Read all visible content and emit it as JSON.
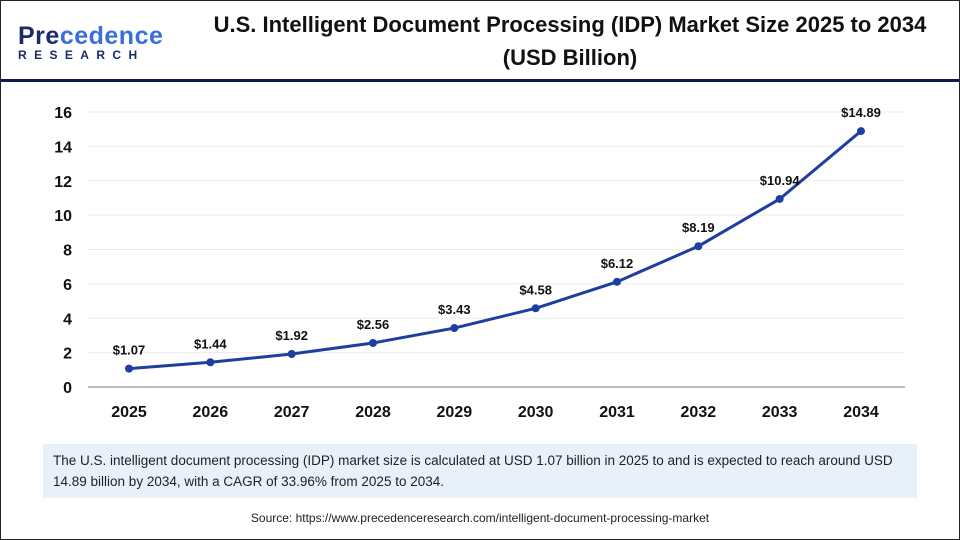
{
  "logo": {
    "line1": "Precedence",
    "line2": "RESEARCH"
  },
  "title": "U.S. Intelligent Document Processing (IDP) Market Size 2025 to 2034 (USD Billion)",
  "chart_data": {
    "type": "line",
    "title": "U.S. Intelligent Document Processing (IDP) Market Size 2025 to 2034 (USD Billion)",
    "categories": [
      "2025",
      "2026",
      "2027",
      "2028",
      "2029",
      "2030",
      "2031",
      "2032",
      "2033",
      "2034"
    ],
    "values": [
      1.07,
      1.44,
      1.92,
      2.56,
      3.43,
      4.58,
      6.12,
      8.19,
      10.94,
      14.89
    ],
    "data_labels": [
      "$1.07",
      "$1.44",
      "$1.92",
      "$2.56",
      "$3.43",
      "$4.58",
      "$6.12",
      "$8.19",
      "$10.94",
      "$14.89"
    ],
    "yticks": [
      "0",
      "2",
      "4",
      "6",
      "8",
      "10",
      "12",
      "14",
      "16"
    ],
    "ylim": [
      0,
      16
    ],
    "grid": true,
    "line_color": "#1f3fa0"
  },
  "summary": "The U.S. intelligent document processing (IDP) market size is calculated at USD 1.07 billion in 2025 to and is expected to reach around USD 14.89 billion by 2034, with a CAGR of 33.96% from 2025 to 2034.",
  "source": "Source: https://www.precedenceresearch.com/intelligent-document-processing-market"
}
